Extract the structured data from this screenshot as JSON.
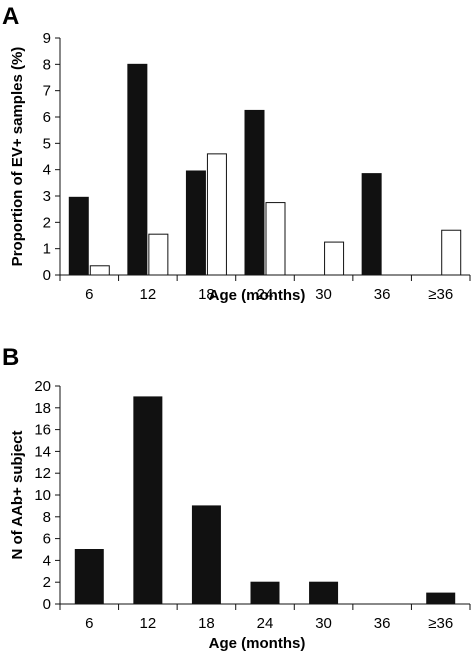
{
  "chart_data": [
    {
      "panel_label": "A",
      "type": "bar",
      "categories": [
        "6",
        "12",
        "18",
        "24",
        "30",
        "36",
        "≥36"
      ],
      "series": [
        {
          "color": "#111111",
          "values": [
            2.95,
            8.0,
            3.95,
            6.25,
            null,
            3.85,
            null
          ]
        },
        {
          "color": "#ffffff",
          "values": [
            0.35,
            1.55,
            4.6,
            2.75,
            1.25,
            null,
            1.7
          ]
        }
      ],
      "xlabel": "Age (months)",
      "ylabel": "Proportion of EV+ samples (%)",
      "ylim": [
        0,
        9
      ],
      "yticks": [
        0,
        1,
        2,
        3,
        4,
        5,
        6,
        7,
        8,
        9
      ],
      "grid": false,
      "legend": "none"
    },
    {
      "panel_label": "B",
      "type": "bar",
      "categories": [
        "6",
        "12",
        "18",
        "24",
        "30",
        "36",
        "≥36"
      ],
      "series": [
        {
          "color": "#111111",
          "values": [
            5,
            19,
            9,
            2,
            2,
            0,
            1
          ]
        }
      ],
      "xlabel": "Age (months)",
      "ylabel": "N of AAb+ subject",
      "ylim": [
        0,
        20
      ],
      "yticks": [
        0,
        2,
        4,
        6,
        8,
        10,
        12,
        14,
        16,
        18,
        20
      ],
      "grid": false,
      "legend": "none"
    }
  ]
}
